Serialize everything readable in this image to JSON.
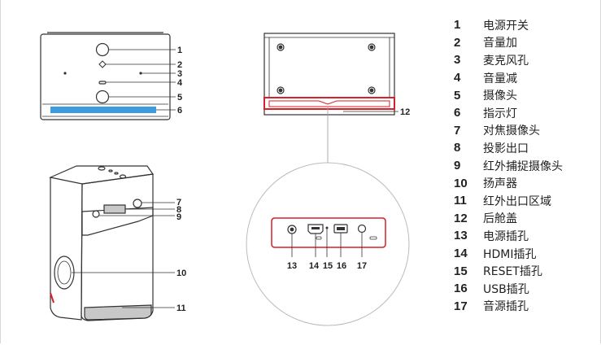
{
  "callouts": {
    "top_view": [
      "1",
      "2",
      "3",
      "4",
      "5",
      "6"
    ],
    "perspective_view": [
      "7",
      "8",
      "9",
      "10",
      "11"
    ],
    "back_view": [
      "12"
    ],
    "port_panel": [
      "13",
      "14",
      "15",
      "16",
      "17"
    ]
  },
  "legend": [
    {
      "num": "1",
      "label": "电源开关"
    },
    {
      "num": "2",
      "label": "音量加"
    },
    {
      "num": "3",
      "label": "麦克风孔"
    },
    {
      "num": "4",
      "label": "音量减"
    },
    {
      "num": "5",
      "label": "摄像头"
    },
    {
      "num": "6",
      "label": "指示灯"
    },
    {
      "num": "7",
      "label": "对焦摄像头"
    },
    {
      "num": "8",
      "label": "投影出口"
    },
    {
      "num": "9",
      "label": "红外捕捉摄像头"
    },
    {
      "num": "10",
      "label": "扬声器"
    },
    {
      "num": "11",
      "label": "红外出口区域"
    },
    {
      "num": "12",
      "label": "后舱盖"
    },
    {
      "num": "13",
      "label": "电源插孔"
    },
    {
      "num": "14",
      "label": "HDMI插孔"
    },
    {
      "num": "15",
      "label": "RESET插孔"
    },
    {
      "num": "16",
      "label": "USB插孔"
    },
    {
      "num": "17",
      "label": "音源插孔"
    }
  ],
  "colors": {
    "line": "#333333",
    "accent_red": "#d6202a",
    "indicator_blue": "#3d9be0",
    "gray_fill": "#c8c8c8"
  }
}
